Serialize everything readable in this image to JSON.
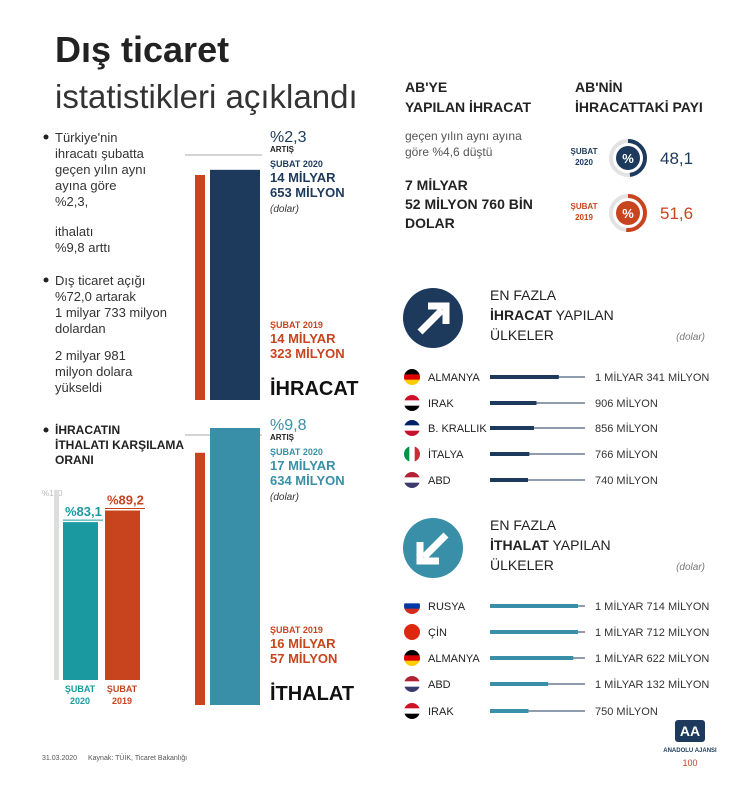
{
  "header": {
    "title": "Dış ticaret",
    "subtitle": "istatistikleri açıklandı"
  },
  "summary": {
    "p1": [
      "Türkiye'nin",
      "ihracatı şubatta",
      "geçen yılın aynı",
      "ayına göre",
      "%2,3,"
    ],
    "p2": [
      "ithalatı",
      "%9,8 arttı"
    ],
    "p3": [
      "Dış ticaret açığı",
      "%72,0 artarak",
      "1 milyar 733 milyon",
      "dolardan"
    ],
    "p4": [
      "2 milyar 981",
      "milyon dolara",
      "yükseldi"
    ]
  },
  "coverage": {
    "title": [
      "İHRACATIN",
      "İTHALATI KARŞILAMA",
      "ORANI"
    ],
    "full": {
      "value": 100,
      "label": "%100"
    },
    "bars": [
      {
        "value": 83.1,
        "label": "%83,1",
        "period": [
          "ŞUBAT",
          "2020"
        ],
        "color": "#1a9aa0"
      },
      {
        "value": 89.2,
        "label": "%89,2",
        "period": [
          "ŞUBAT",
          "2019"
        ],
        "color": "#c8441f"
      }
    ]
  },
  "export": {
    "name": "İHRACAT",
    "change": "%2,3",
    "change_label": "ARTIŞ",
    "current": {
      "period": "ŞUBAT 2020",
      "value": 14653,
      "lines": [
        "14 MİLYAR",
        "653 MİLYON"
      ],
      "unit": "(dolar)",
      "color": "#1d3a5c"
    },
    "previous": {
      "period": "ŞUBAT 2019",
      "value": 14323,
      "lines": [
        "14 MİLYAR",
        "323 MİLYON"
      ],
      "color": "#c8441f"
    }
  },
  "import": {
    "name": "İTHALAT",
    "change": "%9,8",
    "change_label": "ARTIŞ",
    "current": {
      "period": "ŞUBAT 2020",
      "value": 17634,
      "lines": [
        "17 MİLYAR",
        "634 MİLYON"
      ],
      "unit": "(dolar)",
      "color": "#3a8fa8"
    },
    "previous": {
      "period": "ŞUBAT 2019",
      "value": 16057,
      "lines": [
        "16 MİLYAR",
        "57 MİLYON"
      ],
      "color": "#c8441f"
    }
  },
  "eu": {
    "title": [
      "AB'YE",
      "YAPILAN İHRACAT"
    ],
    "note": [
      "geçen yılın aynı ayına",
      "göre %4,6 düştü"
    ],
    "amount": [
      "7 MİLYAR",
      "52 MİLYON 760 BİN",
      "DOLAR"
    ]
  },
  "eu_share": {
    "title": [
      "AB'NİN",
      "İHRACATTAKİ PAYI"
    ],
    "symbol": "%",
    "items": [
      {
        "period": [
          "ŞUBAT",
          "2020"
        ],
        "value": 48.1,
        "label": "48,1",
        "color": "#1d3a5c"
      },
      {
        "period": [
          "ŞUBAT",
          "2019"
        ],
        "value": 51.6,
        "label": "51,6",
        "color": "#c8441f"
      }
    ]
  },
  "top_exports": {
    "title": {
      "line1": "EN FAZLA",
      "bold": "İHRACAT",
      "rest": " YAPILAN",
      "line3": "ÜLKELER"
    },
    "unit": "(dolar)",
    "color": "#1d3a5c",
    "countries": [
      {
        "name": "ALMANYA",
        "value": 1341,
        "label": "1 MİLYAR 341 MİLYON"
      },
      {
        "name": "IRAK",
        "value": 906,
        "label": "906 MİLYON"
      },
      {
        "name": "B. KRALLIK",
        "value": 856,
        "label": "856 MİLYON"
      },
      {
        "name": "İTALYA",
        "value": 766,
        "label": "766 MİLYON"
      },
      {
        "name": "ABD",
        "value": 740,
        "label": "740 MİLYON"
      }
    ]
  },
  "top_imports": {
    "title": {
      "line1": "EN FAZLA",
      "bold": "İTHALAT",
      "rest": " YAPILAN",
      "line3": "ÜLKELER"
    },
    "unit": "(dolar)",
    "color": "#3a8fa8",
    "countries": [
      {
        "name": "RUSYA",
        "value": 1714,
        "label": "1 MİLYAR 714 MİLYON"
      },
      {
        "name": "ÇİN",
        "value": 1712,
        "label": "1 MİLYAR 712 MİLYON"
      },
      {
        "name": "ALMANYA",
        "value": 1622,
        "label": "1 MİLYAR 622 MİLYON"
      },
      {
        "name": "ABD",
        "value": 1132,
        "label": "1 MİLYAR 132 MİLYON"
      },
      {
        "name": "IRAK",
        "value": 750,
        "label": "750 MİLYON"
      }
    ]
  },
  "footer": {
    "date": "31.03.2020",
    "source": "Kaynak: TÜİK, Ticaret Bakanlığı",
    "logo": "AA",
    "agency": "ANADOLU AJANSI",
    "anniversary": "100"
  }
}
